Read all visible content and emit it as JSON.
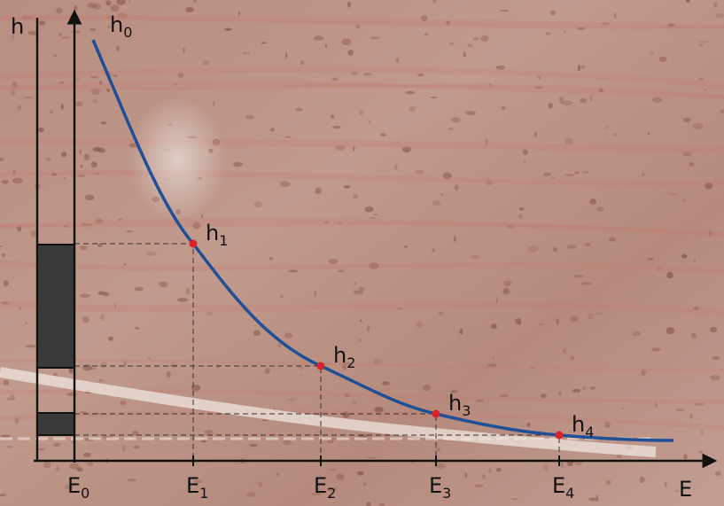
{
  "y_axis_label": "h",
  "x_axis_label": "E",
  "curve_points": [
    {
      "base": "h",
      "sub": "0"
    },
    {
      "base": "h",
      "sub": "1"
    },
    {
      "base": "h",
      "sub": "2"
    },
    {
      "base": "h",
      "sub": "3"
    },
    {
      "base": "h",
      "sub": "4"
    }
  ],
  "x_points": [
    {
      "base": "E",
      "sub": "0"
    },
    {
      "base": "E",
      "sub": "1"
    },
    {
      "base": "E",
      "sub": "2"
    },
    {
      "base": "E",
      "sub": "3"
    },
    {
      "base": "E",
      "sub": "4"
    }
  ]
}
